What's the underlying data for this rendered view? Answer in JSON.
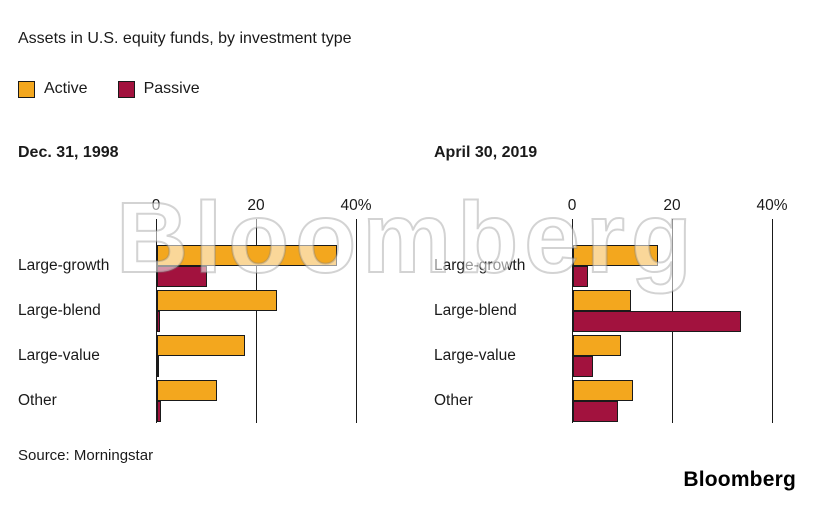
{
  "title": "Assets in U.S. equity funds, by investment type",
  "legend": {
    "items": [
      {
        "label": "Active",
        "color": "#F3A71E"
      },
      {
        "label": "Passive",
        "color": "#A2123E"
      }
    ]
  },
  "watermark": "Bloomberg",
  "source": "Source: Morningstar",
  "logo": "Bloomberg",
  "chart_data": [
    {
      "type": "bar",
      "orientation": "horizontal",
      "title": "Dec. 31, 1998",
      "categories": [
        "Large-growth",
        "Large-blend",
        "Large-value",
        "Other"
      ],
      "series": [
        {
          "name": "Active",
          "color": "#F3A71E",
          "values": [
            36,
            24,
            17.5,
            12
          ]
        },
        {
          "name": "Passive",
          "color": "#A2123E",
          "values": [
            10,
            0.5,
            0.3,
            0.7
          ]
        }
      ],
      "xlim": [
        0,
        40
      ],
      "xticks": [
        0,
        20,
        40
      ],
      "xtick_labels": [
        "0",
        "20",
        "40%"
      ],
      "grid": "vertical-lines",
      "legend_position": "top-left"
    },
    {
      "type": "bar",
      "orientation": "horizontal",
      "title": "April 30, 2019",
      "categories": [
        "Large-growth",
        "Large-blend",
        "Large-value",
        "Other"
      ],
      "series": [
        {
          "name": "Active",
          "color": "#F3A71E",
          "values": [
            17,
            11.5,
            9.5,
            12
          ]
        },
        {
          "name": "Passive",
          "color": "#A2123E",
          "values": [
            3,
            33.5,
            4,
            9
          ]
        }
      ],
      "xlim": [
        0,
        40
      ],
      "xticks": [
        0,
        20,
        40
      ],
      "xtick_labels": [
        "0",
        "20",
        "40%"
      ],
      "grid": "vertical-lines",
      "legend_position": "top-left"
    }
  ]
}
